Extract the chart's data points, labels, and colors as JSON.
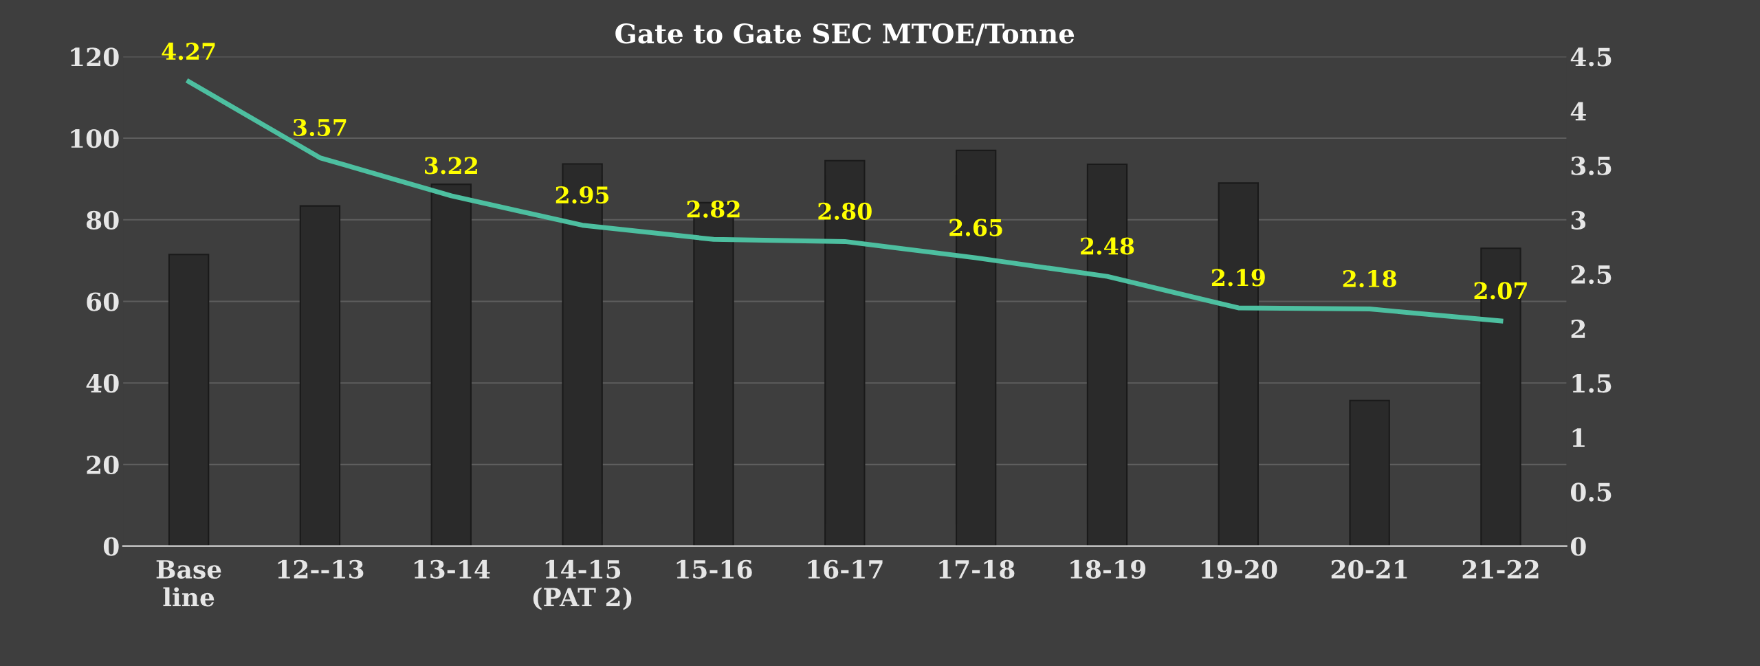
{
  "chart_data": {
    "type": "bar",
    "title": "Gate to Gate SEC MTOE/Tonne",
    "categories": [
      "Base\nline",
      "12--13",
      "13-14",
      "14-15\n(PAT 2)",
      "15-16",
      "16-17",
      "17-18",
      "18-19",
      "19-20",
      "20-21",
      "21-22"
    ],
    "series": [
      {
        "color": "#2a2a2a",
        "values": [
          71.5,
          83.4,
          88.7,
          93.7,
          84.2,
          94.5,
          97,
          93.6,
          89,
          35.7,
          73
        ]
      },
      {
        "type": "line",
        "axis": "y2",
        "color": "#4dbfa0",
        "values": [
          4.27,
          3.57,
          3.22,
          2.95,
          2.82,
          2.8,
          2.65,
          2.48,
          2.19,
          2.18,
          2.07
        ],
        "value_labels": [
          "4.27",
          "3.57",
          "3.22",
          "2.95",
          "2.82",
          "2.80",
          "2.65",
          "2.48",
          "2.19",
          "2.18",
          "2.07"
        ]
      }
    ],
    "ylim": [
      0,
      120
    ],
    "yticks": [
      0,
      20,
      40,
      60,
      80,
      100,
      120
    ],
    "y2lim": [
      0,
      4.5
    ],
    "y2ticks": [
      0,
      0.5,
      1,
      1.5,
      2,
      2.5,
      3,
      3.5,
      4,
      4.5
    ],
    "grid": "y",
    "marker": "none",
    "line_style": "solid"
  }
}
